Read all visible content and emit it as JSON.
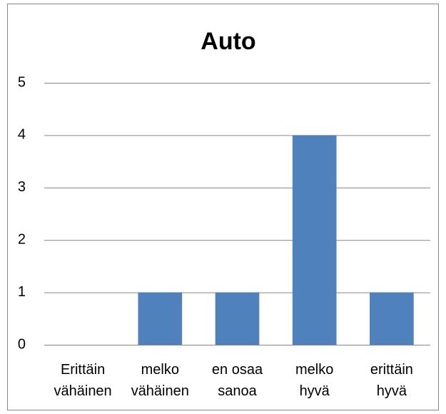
{
  "chart_data": {
    "type": "bar",
    "title": "Auto",
    "categories": [
      "Erittäin\nvähäinen",
      "melko\nvähäinen",
      "en osaa\nsanoa",
      "melko\nhyvä",
      "erittäin\nhyvä"
    ],
    "values": [
      0,
      1,
      1,
      4,
      1
    ],
    "color": "#4f81bd",
    "ylim": [
      0,
      5
    ],
    "yticks": [
      0,
      1,
      2,
      3,
      4,
      5
    ],
    "grid": true
  }
}
